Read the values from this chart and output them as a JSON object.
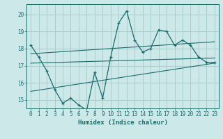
{
  "xlabel": "Humidex (Indice chaleur)",
  "ylabel": "",
  "bg_color": "#cce8e8",
  "grid_color": "#aacccc",
  "line_color": "#1a6b6b",
  "x": [
    0,
    1,
    2,
    3,
    4,
    5,
    6,
    7,
    8,
    9,
    10,
    11,
    12,
    13,
    14,
    15,
    16,
    17,
    18,
    19,
    20,
    21,
    22,
    23
  ],
  "y_main": [
    18.2,
    17.5,
    16.7,
    15.6,
    14.8,
    15.1,
    14.7,
    14.4,
    16.6,
    15.1,
    17.5,
    19.5,
    20.2,
    18.5,
    17.8,
    18.0,
    19.1,
    19.0,
    18.2,
    18.5,
    18.2,
    17.5,
    17.2,
    17.2
  ],
  "ylim": [
    14.5,
    20.6
  ],
  "xlim": [
    -0.5,
    23.5
  ],
  "yticks": [
    15,
    16,
    17,
    18,
    19,
    20
  ],
  "xticks": [
    0,
    1,
    2,
    3,
    4,
    5,
    6,
    7,
    8,
    9,
    10,
    11,
    12,
    13,
    14,
    15,
    16,
    17,
    18,
    19,
    20,
    21,
    22,
    23
  ],
  "trend1_x": [
    0,
    23
  ],
  "trend1_y": [
    17.15,
    17.45
  ],
  "trend2_x": [
    0,
    23
  ],
  "trend2_y": [
    15.5,
    17.15
  ],
  "trend3_x": [
    0,
    23
  ],
  "trend3_y": [
    17.7,
    18.4
  ]
}
